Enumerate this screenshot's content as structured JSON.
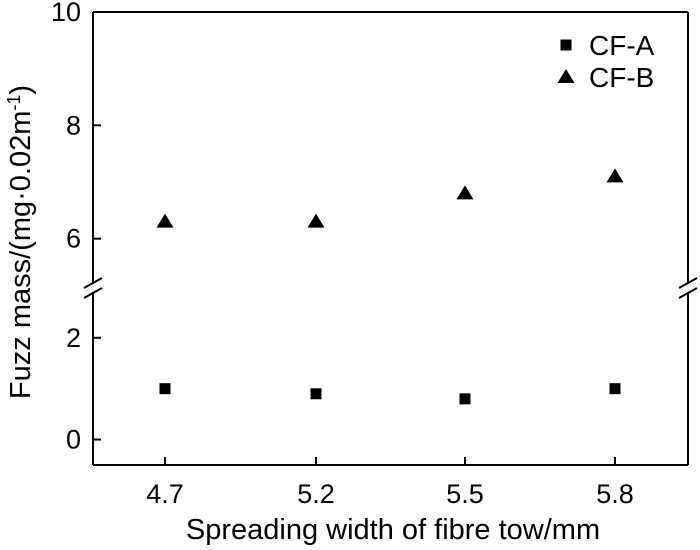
{
  "chart_data": {
    "type": "scatter",
    "xlabel": "Spreading width of fibre tow/mm",
    "ylabel_main": "Fuzz  mass/(mg·0.02m",
    "ylabel_sup": "-1",
    "ylabel_close": ")",
    "categories": [
      "4.7",
      "5.2",
      "5.5",
      "5.8"
    ],
    "y_axis": {
      "broken": true,
      "lower_range": [
        -0.5,
        2.9
      ],
      "upper_range": [
        5.2,
        10
      ],
      "lower_ticks": [
        0,
        2
      ],
      "upper_ticks": [
        6,
        8,
        10
      ],
      "tick_labels": {
        "0": "0",
        "2": "2",
        "6": "6",
        "8": "8",
        "10": "10"
      }
    },
    "series": [
      {
        "name": "CF-A",
        "marker": "square",
        "color": "#000000",
        "values": [
          1.0,
          0.9,
          0.8,
          1.0
        ]
      },
      {
        "name": "CF-B",
        "marker": "triangle",
        "color": "#000000",
        "values": [
          6.3,
          6.3,
          6.8,
          7.1
        ]
      }
    ],
    "legend": {
      "position": "top-right"
    },
    "grid": false
  }
}
